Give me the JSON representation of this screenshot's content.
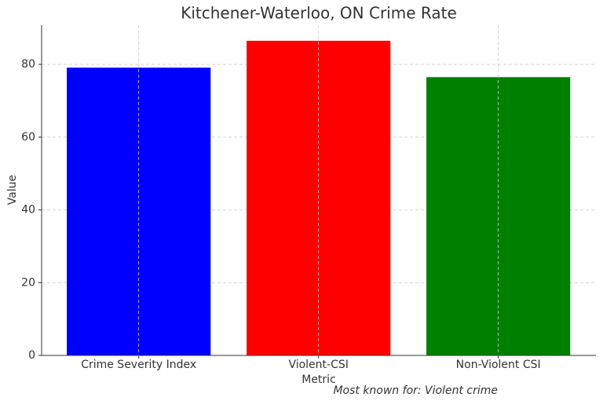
{
  "chart_data": {
    "type": "bar",
    "title": "Kitchener-Waterloo, ON Crime Rate",
    "categories": [
      "Crime Severity Index",
      "Violent-CSI",
      "Non-Violent CSI"
    ],
    "values": [
      79.1,
      86.5,
      76.5
    ],
    "colors": [
      "blue",
      "red",
      "green"
    ],
    "xlabel": "Metric",
    "ylabel": "Value",
    "annotation": "Most known for: Violent crime",
    "ylim": [
      0,
      90.8
    ],
    "yticks": [
      0,
      20,
      40,
      60,
      80
    ],
    "grid": true
  }
}
